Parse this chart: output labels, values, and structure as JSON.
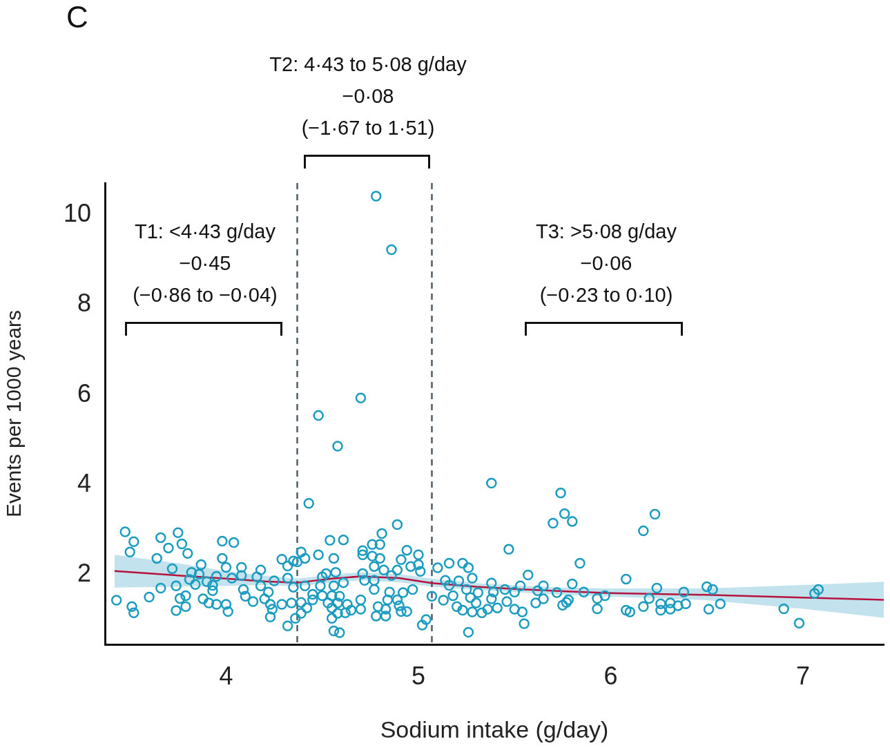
{
  "chart_data": {
    "type": "scatter",
    "title": "C",
    "xlabel": "Sodium intake (g/day)",
    "ylabel": "Events per 1000 years",
    "annotations": [
      "T1: <4·43 g/day\n−0·45\n(−0·86 to −0·04)",
      "T2: 4·43 to 5·08 g/day\n−0·08\n(−1·67 to 1·51)",
      "T3: >5·08 g/day\n−0·06\n(−0·23 to 0·10)"
    ],
    "xlim": [
      3.37,
      7.42
    ],
    "ylim": [
      0.46,
      10.7
    ],
    "xticks": [
      4,
      5,
      6,
      7
    ],
    "yticks": [
      2,
      4,
      6,
      8,
      10
    ],
    "grid": false,
    "legend": false,
    "ref_lines": [
      {
        "axis": "x",
        "value": 4.37,
        "color": "#4a5f6b",
        "line_style": "dashed"
      },
      {
        "axis": "x",
        "value": 5.07,
        "color": "#4a5f6b",
        "line_style": "dashed"
      }
    ],
    "series": [
      {
        "type": "scatter",
        "color": "#1a9bbf",
        "marker": "circle",
        "x": [
          3.475,
          3.52,
          3.5,
          3.43,
          3.51,
          3.52,
          3.64,
          3.6,
          3.66,
          3.7,
          3.66,
          3.72,
          3.75,
          3.77,
          3.8,
          3.74,
          3.76,
          3.79,
          3.74,
          3.79,
          3.82,
          3.86,
          3.87,
          3.84,
          3.81,
          3.88,
          3.91,
          3.95,
          3.9,
          3.93,
          3.93,
          3.95,
          3.98,
          4.04,
          3.98,
          4.0,
          4.0,
          4.01,
          4.03,
          4.08,
          4.08,
          4.09,
          4.1,
          4.14,
          4.18,
          4.16,
          4.18,
          4.2,
          4.22,
          4.23,
          4.24,
          4.23,
          4.25,
          4.29,
          4.29,
          4.32,
          4.32,
          4.32,
          4.34,
          4.35,
          4.35,
          4.36,
          4.7,
          4.48,
          4.58,
          4.43,
          4.78,
          4.86,
          4.89,
          4.81,
          4.54,
          4.61,
          4.48,
          4.56,
          4.39,
          4.41,
          4.37,
          4.71,
          4.76,
          4.8,
          4.71,
          4.76,
          4.8,
          4.77,
          4.94,
          4.91,
          4.96,
          5.0,
          5.0,
          5.01,
          4.89,
          4.82,
          4.71,
          4.72,
          4.77,
          4.77,
          4.57,
          4.52,
          4.5,
          4.61,
          4.41,
          4.49,
          4.56,
          4.86,
          4.97,
          4.85,
          4.92,
          4.45,
          4.5,
          4.55,
          4.59,
          4.39,
          4.45,
          4.53,
          4.58,
          4.63,
          4.7,
          4.79,
          4.84,
          4.89,
          4.9,
          4.42,
          4.55,
          4.65,
          4.7,
          4.83,
          4.94,
          4.58,
          4.62,
          4.39,
          4.78,
          4.83,
          4.91,
          4.55,
          5.02,
          5.04,
          4.56,
          4.59,
          5.07,
          5.38,
          5.74,
          5.76,
          5.8,
          5.7,
          5.47,
          5.84,
          5.57,
          5.8,
          5.1,
          5.16,
          5.23,
          5.26,
          5.28,
          5.14,
          5.16,
          5.21,
          5.25,
          5.18,
          5.27,
          5.31,
          5.13,
          5.2,
          5.23,
          5.28,
          5.3,
          5.33,
          5.36,
          5.38,
          5.39,
          5.38,
          5.41,
          5.45,
          5.46,
          5.5,
          5.53,
          5.5,
          5.54,
          5.55,
          5.26,
          5.61,
          5.65,
          5.62,
          5.65,
          5.72,
          5.75,
          5.77,
          5.78,
          5.86,
          5.93,
          5.93,
          5.97,
          6.23,
          6.17,
          6.08,
          6.24,
          6.2,
          6.17,
          6.08,
          6.1,
          6.26,
          6.26,
          6.31,
          6.31,
          6.35,
          6.39,
          6.38,
          6.5,
          6.53,
          6.51,
          6.57,
          6.9,
          6.98,
          7.06,
          7.08
        ],
        "values": [
          2.96,
          2.74,
          2.51,
          1.44,
          1.3,
          1.16,
          2.37,
          1.51,
          2.83,
          2.6,
          1.71,
          2.14,
          2.94,
          2.69,
          2.48,
          1.76,
          1.48,
          1.54,
          1.21,
          1.3,
          2.06,
          2.02,
          2.23,
          1.79,
          1.9,
          1.47,
          1.38,
          1.35,
          1.85,
          1.77,
          1.65,
          1.97,
          2.75,
          2.72,
          2.37,
          2.17,
          1.35,
          1.19,
          1.93,
          2.17,
          1.99,
          1.68,
          1.53,
          1.41,
          2.11,
          1.96,
          1.76,
          1.47,
          1.62,
          1.35,
          1.24,
          1.07,
          1.87,
          2.35,
          1.35,
          2.2,
          1.93,
          0.87,
          1.38,
          1.73,
          2.31,
          1.04,
          5.93,
          5.54,
          4.86,
          3.59,
          10.41,
          9.22,
          3.12,
          2.92,
          2.77,
          2.78,
          2.45,
          2.37,
          2.51,
          2.37,
          2.29,
          2.54,
          2.68,
          2.68,
          2.45,
          2.42,
          2.37,
          2.19,
          2.55,
          2.34,
          2.19,
          2.45,
          2.23,
          2.08,
          2.11,
          2.11,
          2.03,
          1.88,
          1.88,
          1.68,
          2.06,
          2.03,
          1.96,
          1.83,
          1.76,
          1.76,
          1.76,
          1.99,
          1.68,
          1.62,
          1.61,
          1.57,
          1.54,
          1.54,
          1.53,
          1.39,
          1.45,
          1.38,
          1.38,
          1.35,
          1.45,
          1.3,
          1.45,
          1.45,
          1.32,
          1.27,
          1.27,
          1.22,
          1.24,
          1.24,
          1.19,
          1.15,
          1.16,
          1.15,
          1.09,
          1.09,
          1.19,
          1.04,
          0.89,
          1.01,
          0.76,
          0.72,
          1.53,
          4.04,
          3.82,
          3.36,
          3.19,
          3.15,
          2.57,
          2.26,
          2.0,
          1.8,
          2.16,
          2.26,
          2.26,
          2.16,
          1.93,
          1.88,
          1.77,
          1.87,
          1.68,
          1.54,
          1.5,
          1.61,
          1.44,
          1.3,
          1.22,
          1.18,
          1.38,
          1.16,
          1.24,
          1.82,
          1.62,
          1.47,
          1.27,
          1.68,
          1.41,
          1.62,
          1.76,
          1.24,
          1.18,
          0.92,
          0.73,
          1.38,
          1.47,
          1.65,
          1.76,
          1.61,
          1.33,
          1.39,
          1.45,
          1.62,
          1.48,
          1.25,
          1.54,
          3.35,
          2.98,
          1.91,
          1.71,
          1.48,
          1.3,
          1.22,
          1.18,
          1.36,
          1.22,
          1.38,
          1.24,
          1.32,
          1.36,
          1.62,
          1.74,
          1.68,
          1.24,
          1.36,
          1.25,
          0.93,
          1.59,
          1.68
        ]
      },
      {
        "type": "line",
        "color": "#b5123e",
        "x": [
          3.42,
          3.75,
          4.0,
          4.2,
          4.37,
          4.55,
          4.7,
          4.9,
          5.07,
          5.3,
          5.5,
          5.75,
          6.0,
          6.5,
          7.0,
          7.42
        ],
        "values": [
          2.09,
          1.99,
          1.92,
          1.86,
          1.83,
          1.92,
          1.97,
          1.93,
          1.82,
          1.74,
          1.69,
          1.64,
          1.6,
          1.56,
          1.5,
          1.45
        ],
        "lower": [
          1.72,
          1.74,
          1.76,
          1.78,
          1.75,
          1.83,
          1.88,
          1.84,
          1.74,
          1.67,
          1.62,
          1.56,
          1.52,
          1.44,
          1.25,
          1.05
        ],
        "upper": [
          2.45,
          2.26,
          2.09,
          1.98,
          1.92,
          2.01,
          2.06,
          2.02,
          1.92,
          1.82,
          1.77,
          1.72,
          1.7,
          1.7,
          1.78,
          1.85
        ]
      }
    ]
  }
}
